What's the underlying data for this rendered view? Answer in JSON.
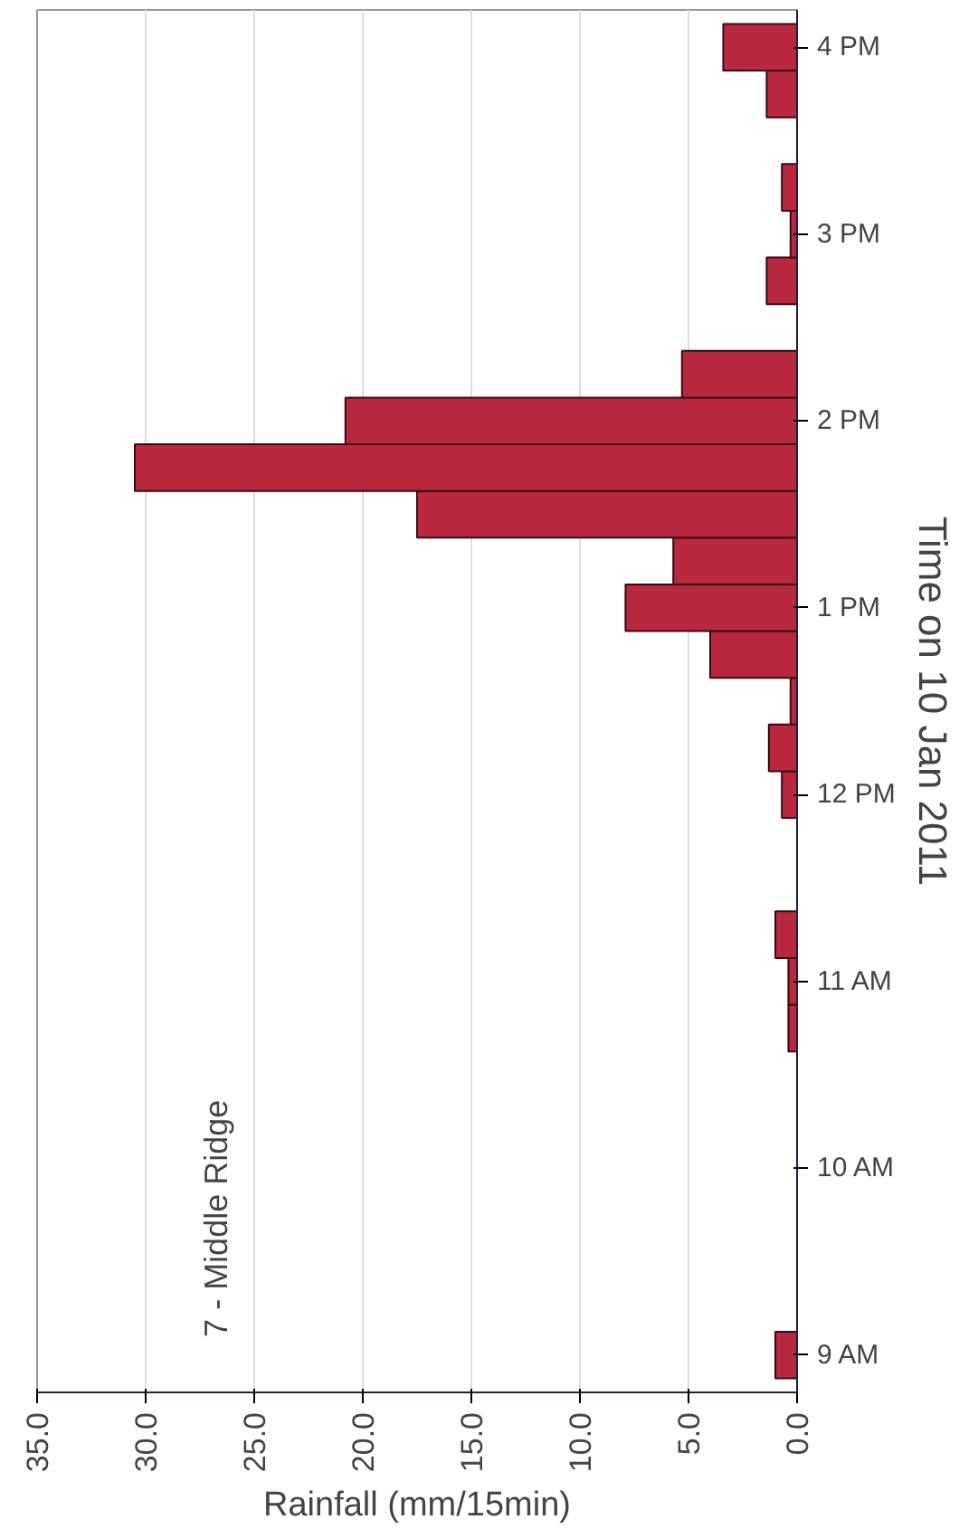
{
  "chart_data": {
    "type": "bar",
    "orientation": "horizontal",
    "xlabel": "Rainfall (mm/15min)",
    "ylabel": "Time on 10 Jan 2011",
    "annotations": [
      "7 - Middle Ridge"
    ],
    "x": [
      "2011-01-10T09:00",
      "2011-01-10T10:45",
      "2011-01-10T11:00",
      "2011-01-10T11:15",
      "2011-01-10T12:00",
      "2011-01-10T12:15",
      "2011-01-10T12:30",
      "2011-01-10T12:45",
      "2011-01-10T13:00",
      "2011-01-10T13:15",
      "2011-01-10T13:30",
      "2011-01-10T13:45",
      "2011-01-10T14:00",
      "2011-01-10T14:15",
      "2011-01-10T14:45",
      "2011-01-10T15:00",
      "2011-01-10T15:15",
      "2011-01-10T15:45",
      "2011-01-10T16:00"
    ],
    "values": [
      1.0,
      0.4,
      0.4,
      1.0,
      0.7,
      1.3,
      0.3,
      4.0,
      7.9,
      5.7,
      17.5,
      30.5,
      20.8,
      5.3,
      1.4,
      0.3,
      0.7,
      1.4,
      3.4
    ],
    "color": "#b8283f",
    "xlim": [
      35,
      0
    ],
    "xticks": [
      {
        "value": 35,
        "label": "35.0"
      },
      {
        "value": 30,
        "label": "30.0"
      },
      {
        "value": 25,
        "label": "25.0"
      },
      {
        "value": 20,
        "label": "20.0"
      },
      {
        "value": 15,
        "label": "15.0"
      },
      {
        "value": 10,
        "label": "10.0"
      },
      {
        "value": 5,
        "label": "5.0"
      },
      {
        "value": 0,
        "label": "0.0"
      }
    ],
    "ylim": [
      "2011-01-10T08:48",
      "2011-01-10T16:12"
    ],
    "yticks": [
      {
        "value": "2011-01-10T09:00",
        "label": "9 AM"
      },
      {
        "value": "2011-01-10T10:00",
        "label": "10 AM"
      },
      {
        "value": "2011-01-10T11:00",
        "label": "11 AM"
      },
      {
        "value": "2011-01-10T12:00",
        "label": "12 PM"
      },
      {
        "value": "2011-01-10T13:00",
        "label": "1 PM"
      },
      {
        "value": "2011-01-10T14:00",
        "label": "2 PM"
      },
      {
        "value": "2011-01-10T15:00",
        "label": "3 PM"
      },
      {
        "value": "2011-01-10T16:00",
        "label": "4 PM"
      }
    ],
    "grid": "x"
  }
}
